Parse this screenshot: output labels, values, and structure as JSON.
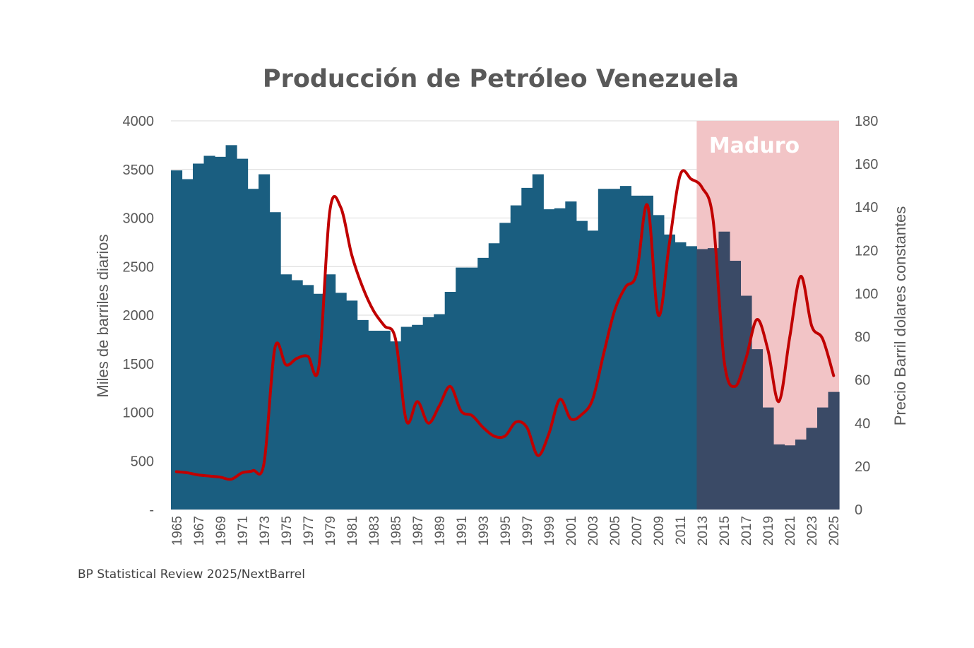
{
  "chart_data": {
    "type": "bar+line",
    "title": "Producción de Petróleo Venezuela",
    "source": "BP Statistical Review 2025/NextBarrel",
    "ylabel_left": "Miles de barriles diarios",
    "ylabel_right": "Precio Barril dolares constantes",
    "ylim_left": [
      0,
      4000
    ],
    "ylim_right": [
      0,
      180
    ],
    "left_ticks": [
      "-",
      "500",
      "1000",
      "1500",
      "2000",
      "2500",
      "3000",
      "3500",
      "4000"
    ],
    "right_ticks": [
      "0",
      "20",
      "40",
      "60",
      "80",
      "100",
      "120",
      "140",
      "160",
      "180"
    ],
    "grid": true,
    "annotation": {
      "label": "Maduro",
      "from": 2013,
      "to": 2025,
      "color": "#f2c4c6"
    },
    "colors": {
      "bars": "#1a5e80",
      "bars_highlight": "#3a4a66",
      "line": "#c00000"
    },
    "years": [
      1965,
      1966,
      1967,
      1968,
      1969,
      1970,
      1971,
      1972,
      1973,
      1974,
      1975,
      1976,
      1977,
      1978,
      1979,
      1980,
      1981,
      1982,
      1983,
      1984,
      1985,
      1986,
      1987,
      1988,
      1989,
      1990,
      1991,
      1992,
      1993,
      1994,
      1995,
      1996,
      1997,
      1998,
      1999,
      2000,
      2001,
      2002,
      2003,
      2004,
      2005,
      2006,
      2007,
      2008,
      2009,
      2010,
      2011,
      2012,
      2013,
      2014,
      2015,
      2016,
      2017,
      2018,
      2019,
      2020,
      2021,
      2022,
      2023,
      2024,
      2025
    ],
    "series": [
      {
        "type": "bar",
        "axis": "left",
        "values": [
          3490,
          3400,
          3560,
          3640,
          3630,
          3750,
          3610,
          3300,
          3450,
          3060,
          2420,
          2360,
          2310,
          2220,
          2420,
          2230,
          2150,
          1950,
          1840,
          1840,
          1730,
          1880,
          1900,
          1980,
          2010,
          2240,
          2490,
          2490,
          2590,
          2740,
          2950,
          3130,
          3310,
          3450,
          3090,
          3100,
          3170,
          2970,
          2870,
          3300,
          3300,
          3330,
          3230,
          3230,
          3030,
          2830,
          2750,
          2710,
          2680,
          2690,
          2860,
          2560,
          2200,
          1650,
          1050,
          670,
          660,
          720,
          840,
          1050,
          1210
        ]
      },
      {
        "type": "line",
        "axis": "right",
        "values": [
          17.5,
          17,
          16,
          15.5,
          15,
          14,
          17,
          18,
          21.5,
          75,
          67,
          70,
          71,
          66,
          138,
          140,
          118,
          103,
          92,
          85,
          79,
          41,
          50,
          40,
          48,
          57,
          45.5,
          43.5,
          38,
          34,
          34,
          40.5,
          38,
          25,
          35,
          51,
          42,
          44,
          51,
          72,
          92,
          103,
          109,
          141,
          90,
          123,
          155,
          153,
          149,
          134,
          69,
          57,
          70,
          88,
          74,
          50,
          80,
          108,
          85,
          79,
          62
        ]
      }
    ]
  }
}
